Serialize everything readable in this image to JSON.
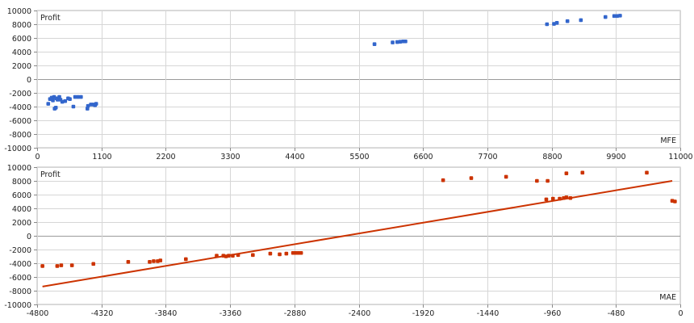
{
  "chart_data": [
    {
      "type": "scatter",
      "ylabel": "Profit",
      "xlabel": "MFE",
      "xlim": [
        0,
        11000
      ],
      "ylim": [
        -10000,
        10000
      ],
      "xticks": [
        0,
        1100,
        2200,
        3300,
        4400,
        5500,
        6600,
        7700,
        8800,
        9900,
        11000
      ],
      "yticks": [
        -10000,
        -8000,
        -6000,
        -4000,
        -2000,
        0,
        2000,
        4000,
        6000,
        8000,
        10000
      ],
      "grid": true,
      "point_color": "#3366cc",
      "series": [
        {
          "points": [
            [
              190,
              -3600
            ],
            [
              220,
              -2900
            ],
            [
              250,
              -2700
            ],
            [
              270,
              -3100
            ],
            [
              290,
              -2600
            ],
            [
              300,
              -4300
            ],
            [
              320,
              -4150
            ],
            [
              330,
              -2800
            ],
            [
              350,
              -3000
            ],
            [
              380,
              -2600
            ],
            [
              400,
              -3000
            ],
            [
              430,
              -3300
            ],
            [
              480,
              -3200
            ],
            [
              530,
              -2800
            ],
            [
              560,
              -2900
            ],
            [
              620,
              -4000
            ],
            [
              650,
              -2600
            ],
            [
              700,
              -2600
            ],
            [
              750,
              -2600
            ],
            [
              860,
              -4300
            ],
            [
              870,
              -3900
            ],
            [
              920,
              -3700
            ],
            [
              960,
              -3700
            ],
            [
              990,
              -3800
            ],
            [
              1010,
              -3600
            ],
            [
              5770,
              5100
            ],
            [
              6080,
              5350
            ],
            [
              6160,
              5400
            ],
            [
              6210,
              5450
            ],
            [
              6260,
              5500
            ],
            [
              6300,
              5500
            ],
            [
              8720,
              8000
            ],
            [
              8840,
              8050
            ],
            [
              8890,
              8200
            ],
            [
              9070,
              8450
            ],
            [
              9300,
              8600
            ],
            [
              9720,
              9050
            ],
            [
              9870,
              9200
            ],
            [
              9920,
              9200
            ],
            [
              9970,
              9250
            ]
          ]
        }
      ]
    },
    {
      "type": "scatter",
      "ylabel": "Profit",
      "xlabel": "MAE",
      "xlim": [
        -4800,
        0
      ],
      "ylim": [
        -10000,
        10000
      ],
      "xticks": [
        -4800,
        -4320,
        -3840,
        -3360,
        -2880,
        -2400,
        -1920,
        -1440,
        -960,
        -480,
        0
      ],
      "yticks": [
        -10000,
        -8000,
        -6000,
        -4000,
        -2000,
        0,
        2000,
        4000,
        6000,
        8000,
        10000
      ],
      "grid": true,
      "point_color": "#cc3300",
      "trendline": {
        "color": "#cc3300",
        "points": [
          [
            -4760,
            -7400
          ],
          [
            -60,
            8000
          ]
        ]
      },
      "series": [
        {
          "points": [
            [
              -4760,
              -4400
            ],
            [
              -4650,
              -4400
            ],
            [
              -4620,
              -4300
            ],
            [
              -4540,
              -4300
            ],
            [
              -4380,
              -4100
            ],
            [
              -4120,
              -3800
            ],
            [
              -3960,
              -3800
            ],
            [
              -3930,
              -3700
            ],
            [
              -3900,
              -3700
            ],
            [
              -3880,
              -3600
            ],
            [
              -3690,
              -3400
            ],
            [
              -3460,
              -2900
            ],
            [
              -3410,
              -2900
            ],
            [
              -3390,
              -3000
            ],
            [
              -3370,
              -2900
            ],
            [
              -3340,
              -2900
            ],
            [
              -3300,
              -2800
            ],
            [
              -3190,
              -2800
            ],
            [
              -3060,
              -2600
            ],
            [
              -2990,
              -2700
            ],
            [
              -2940,
              -2600
            ],
            [
              -2890,
              -2500
            ],
            [
              -2870,
              -2500
            ],
            [
              -2850,
              -2500
            ],
            [
              -2830,
              -2500
            ],
            [
              -1770,
              8100
            ],
            [
              -1560,
              8400
            ],
            [
              -1300,
              8600
            ],
            [
              -1070,
              8000
            ],
            [
              -990,
              8000
            ],
            [
              -1000,
              5300
            ],
            [
              -950,
              5400
            ],
            [
              -900,
              5400
            ],
            [
              -870,
              5500
            ],
            [
              -850,
              5600
            ],
            [
              -820,
              5500
            ],
            [
              -850,
              9100
            ],
            [
              -730,
              9200
            ],
            [
              -250,
              9200
            ],
            [
              -60,
              5100
            ],
            [
              -40,
              5000
            ]
          ]
        }
      ]
    }
  ]
}
